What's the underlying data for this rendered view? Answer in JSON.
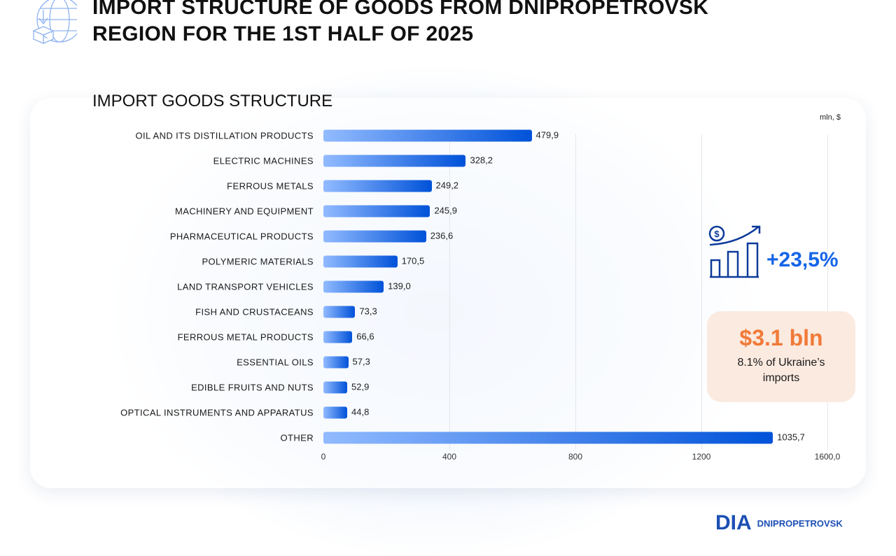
{
  "header": {
    "title_line1": "IMPORT STRUCTURE OF GOODS FROM DNIPROPETROVSK",
    "title_line2": "REGION FOR THE 1ST HALF OF 2025",
    "icon": "globe-import-icon"
  },
  "chart_data": {
    "type": "bar",
    "orientation": "horizontal",
    "title": "IMPORT GOODS STRUCTURE",
    "unit": "mln, $",
    "categories": [
      "OIL AND ITS DISTILLATION PRODUCTS",
      "ELECTRIC MACHINES",
      "FERROUS METALS",
      "MACHINERY AND EQUIPMENT",
      "PHARMACEUTICAL PRODUCTS",
      "POLYMERIC MATERIALS",
      "LAND TRANSPORT VEHICLES",
      "FISH AND CRUSTACEANS",
      "FERROUS METAL PRODUCTS",
      "ESSENTIAL OILS",
      "EDIBLE FRUITS AND NUTS",
      "OPTICAL INSTRUMENTS AND APPARATUS",
      "OTHER"
    ],
    "values": [
      479.9,
      328.2,
      249.2,
      245.9,
      236.6,
      170.5,
      139.0,
      73.3,
      66.6,
      57.3,
      52.9,
      44.8,
      1035.7
    ],
    "value_labels": [
      "479,9",
      "328,2",
      "249,2",
      "245,9",
      "236,6",
      "170,5",
      "139,0",
      "73,3",
      "66,6",
      "57,3",
      "52,9",
      "44,8",
      "1035,7"
    ],
    "xticks": [
      "0",
      "400",
      "800",
      "1200",
      "1600,0"
    ],
    "xlim": [
      0,
      1600
    ],
    "grid": true,
    "colors": {
      "bar_start": "#92bbff",
      "bar_end": "#0052d9"
    }
  },
  "growth": {
    "value": "+23,5%",
    "icon": "growth-chart-dollar-icon",
    "color": "#1565e8"
  },
  "total": {
    "value": "$3.1 bln",
    "caption": "8.1% of Ukraine’s imports",
    "color": "#f07a38"
  },
  "logo": {
    "text": "DNIPROPETROVSK"
  }
}
